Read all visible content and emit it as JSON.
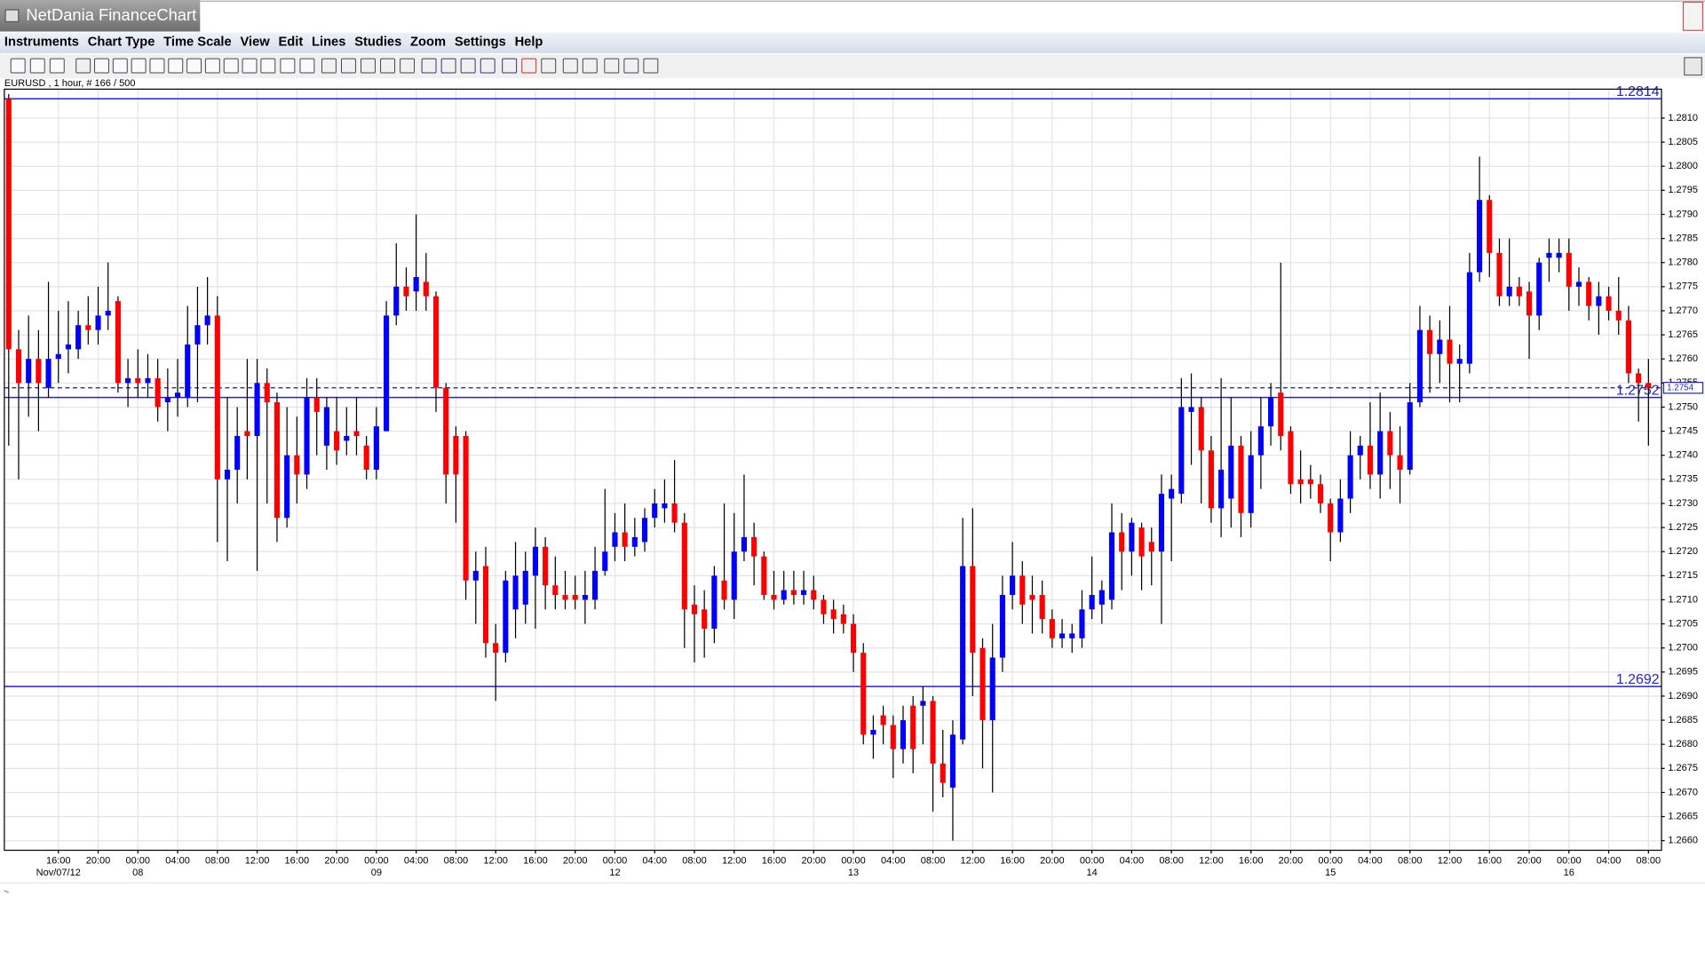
{
  "window_title": "NetDania FinanceChart",
  "menu": [
    "Instruments",
    "Chart Type",
    "Time Scale",
    "View",
    "Edit",
    "Lines",
    "Studies",
    "Zoom",
    "Settings",
    "Help"
  ],
  "chart_data": {
    "type": "candlestick",
    "info": "EURUSD , 1 hour, # 166 / 500",
    "up_color": "#0000ff",
    "down_color": "#ff0000",
    "ylim": [
      1.2658,
      1.2816
    ],
    "yticks": [
      {
        "value": 1.266,
        "label": "1.2660"
      },
      1.2665,
      {
        "value": 1.267,
        "label": "1.2670"
      },
      1.2675,
      {
        "value": 1.268,
        "label": "1.2680"
      },
      1.2685,
      {
        "value": 1.269,
        "label": "1.2690"
      },
      1.2695,
      {
        "value": 1.27,
        "label": "1.2700"
      },
      1.2705,
      {
        "value": 1.271,
        "label": "1.2710"
      },
      1.2715,
      {
        "value": 1.272,
        "label": "1.2720"
      },
      1.2725,
      {
        "value": 1.273,
        "label": "1.2730"
      },
      1.2735,
      {
        "value": 1.274,
        "label": "1.2740"
      },
      1.2745,
      {
        "value": 1.275,
        "label": "1.2750"
      },
      1.2755,
      {
        "value": 1.276,
        "label": "1.2760"
      },
      1.2765,
      {
        "value": 1.277,
        "label": "1.2770"
      },
      1.2775,
      {
        "value": 1.278,
        "label": "1.2780"
      },
      1.2785,
      {
        "value": 1.279,
        "label": "1.2790"
      },
      1.2795,
      {
        "value": 1.28,
        "label": "1.2800"
      },
      1.2805,
      {
        "value": 1.281,
        "label": "1.2810"
      }
    ],
    "grid": true,
    "levels": [
      1.2814,
      1.2752,
      1.2692
    ],
    "level_color": "#2424c8",
    "last": 1.2754,
    "xaxis": [
      {
        "time": "16:00",
        "date": "Nov/07/12"
      },
      {
        "time": "20:00"
      },
      {
        "time": "00:00",
        "date": "08"
      },
      {
        "time": "04:00"
      },
      {
        "time": "08:00"
      },
      {
        "time": "12:00"
      },
      {
        "time": "16:00"
      },
      {
        "time": "20:00"
      },
      {
        "time": "00:00",
        "date": "09"
      },
      {
        "time": "04:00"
      },
      {
        "time": "08:00"
      },
      {
        "time": "12:00"
      },
      {
        "time": "16:00"
      },
      {
        "time": "20:00"
      },
      {
        "time": "00:00",
        "date": "12"
      },
      {
        "time": "04:00"
      },
      {
        "time": "08:00"
      },
      {
        "time": "12:00"
      },
      {
        "time": "16:00"
      },
      {
        "time": "20:00"
      },
      {
        "time": "00:00",
        "date": "13"
      },
      {
        "time": "04:00"
      },
      {
        "time": "08:00"
      },
      {
        "time": "12:00"
      },
      {
        "time": "16:00"
      },
      {
        "time": "20:00"
      },
      {
        "time": "00:00",
        "date": "14"
      },
      {
        "time": "04:00"
      },
      {
        "time": "08:00"
      },
      {
        "time": "12:00"
      },
      {
        "time": "16:00"
      },
      {
        "time": "20:00"
      },
      {
        "time": "00:00",
        "date": "15"
      },
      {
        "time": "04:00"
      },
      {
        "time": "08:00"
      },
      {
        "time": "12:00"
      },
      {
        "time": "16:00"
      },
      {
        "time": "20:00"
      },
      {
        "time": "00:00",
        "date": "16"
      },
      {
        "time": "04:00"
      },
      {
        "time": "08:00"
      }
    ],
    "open": [
      1.2814,
      1.2762,
      1.2755,
      1.276,
      1.2754,
      1.276,
      1.2762,
      1.2762,
      1.2767,
      1.2766,
      1.2769,
      1.2772,
      1.2755,
      1.2756,
      1.2755,
      1.2756,
      1.2751,
      1.2752,
      1.2752,
      1.2763,
      1.2767,
      1.2769,
      1.2735,
      1.2737,
      1.2745,
      1.2744,
      1.2755,
      1.2751,
      1.2727,
      1.274,
      1.2736,
      1.2752,
      1.2742,
      1.2745,
      1.2743,
      1.2745,
      1.2742,
      1.2737,
      1.2745,
      1.2769,
      1.2775,
      1.2774,
      1.2776,
      1.2773,
      1.2754,
      1.2744,
      1.2744,
      1.2714,
      1.2717,
      1.2701,
      1.2699,
      1.2708,
      1.2709,
      1.2715,
      1.2721,
      1.2713,
      1.2711,
      1.2711,
      1.271,
      1.271,
      1.2716,
      1.2721,
      1.2724,
      1.2721,
      1.2722,
      1.2727,
      1.2729,
      1.273,
      1.2726,
      1.2709,
      1.2708,
      1.2704,
      1.2714,
      1.271,
      1.272,
      1.2723,
      1.2719,
      1.2711,
      1.271,
      1.2712,
      1.2711,
      1.2712,
      1.271,
      1.2708,
      1.2707,
      1.2705,
      1.2699,
      1.2682,
      1.2686,
      1.2684,
      1.2679,
      1.2688,
      1.2688,
      1.2689,
      1.2676,
      1.2671,
      1.2681,
      1.2717,
      1.27,
      1.2685,
      1.2698,
      1.2711,
      1.2715,
      1.2711,
      1.2711,
      1.2706,
      1.2702,
      1.2702,
      1.2702,
      1.2708,
      1.2709,
      1.271,
      1.2724,
      1.272,
      1.2725,
      1.2722,
      1.272,
      1.2731,
      1.2732,
      1.2749,
      1.275,
      1.2741,
      1.2729,
      1.2731,
      1.2742,
      1.2728,
      1.274,
      1.2746,
      1.2753,
      1.2745,
      1.2735,
      1.2735,
      1.2734,
      1.273,
      1.2724,
      1.2731,
      1.274,
      1.2742,
      1.2736,
      1.2745,
      1.274,
      1.2737,
      1.2751,
      1.2766,
      1.2761,
      1.2764,
      1.2759,
      1.2759,
      1.2778,
      1.2793,
      1.2782,
      1.2773,
      1.2775,
      1.2774,
      1.2769,
      1.2781,
      1.2781,
      1.2782,
      1.2775,
      1.2776,
      1.2771,
      1.2773,
      1.277,
      1.2768,
      1.2757,
      1.2755
    ],
    "high": [
      1.2815,
      1.2766,
      1.2769,
      1.2766,
      1.2776,
      1.277,
      1.2772,
      1.277,
      1.2773,
      1.2775,
      1.278,
      1.2773,
      1.276,
      1.2762,
      1.2761,
      1.276,
      1.2758,
      1.276,
      1.2771,
      1.2775,
      1.2777,
      1.2773,
      1.2752,
      1.275,
      1.276,
      1.276,
      1.2758,
      1.2753,
      1.275,
      1.2748,
      1.2756,
      1.2756,
      1.2752,
      1.2752,
      1.275,
      1.2752,
      1.2744,
      1.275,
      1.2772,
      1.2784,
      1.2779,
      1.279,
      1.2782,
      1.2774,
      1.2755,
      1.2746,
      1.2745,
      1.272,
      1.2721,
      1.2705,
      1.2716,
      1.2722,
      1.272,
      1.2725,
      1.2723,
      1.2719,
      1.2716,
      1.2715,
      1.2716,
      1.2721,
      1.2733,
      1.2728,
      1.273,
      1.2727,
      1.2729,
      1.2733,
      1.2735,
      1.2739,
      1.2728,
      1.2713,
      1.2712,
      1.2717,
      1.273,
      1.2728,
      1.2736,
      1.2726,
      1.272,
      1.2716,
      1.2716,
      1.2716,
      1.2716,
      1.2715,
      1.2711,
      1.271,
      1.2709,
      1.2707,
      1.2701,
      1.2686,
      1.2688,
      1.2686,
      1.2688,
      1.269,
      1.2692,
      1.269,
      1.2683,
      1.2685,
      1.2727,
      1.2729,
      1.2702,
      1.2705,
      1.2715,
      1.2722,
      1.2718,
      1.2715,
      1.2714,
      1.2708,
      1.2706,
      1.2705,
      1.2712,
      1.2719,
      1.2714,
      1.273,
      1.2728,
      1.2727,
      1.2726,
      1.2725,
      1.2736,
      1.2736,
      1.2756,
      1.2757,
      1.2752,
      1.2744,
      1.2756,
      1.2752,
      1.2744,
      1.2745,
      1.2752,
      1.2755,
      1.278,
      1.2746,
      1.2741,
      1.2738,
      1.2736,
      1.2731,
      1.2735,
      1.2745,
      1.2744,
      1.2751,
      1.2753,
      1.2749,
      1.2746,
      1.2755,
      1.2771,
      1.2769,
      1.2768,
      1.2771,
      1.2763,
      1.2782,
      1.2802,
      1.2794,
      1.2785,
      1.2785,
      1.2777,
      1.2776,
      1.2781,
      1.2785,
      1.2785,
      1.2785,
      1.2779,
      1.2777,
      1.2776,
      1.2775,
      1.2777,
      1.2771,
      1.2758,
      1.276
    ],
    "low": [
      1.2742,
      1.2735,
      1.2748,
      1.2745,
      1.2752,
      1.2755,
      1.2757,
      1.276,
      1.2763,
      1.2763,
      1.2766,
      1.2753,
      1.275,
      1.2752,
      1.2752,
      1.2747,
      1.2745,
      1.2748,
      1.275,
      1.2751,
      1.2763,
      1.2722,
      1.2718,
      1.273,
      1.2735,
      1.2716,
      1.273,
      1.2722,
      1.2725,
      1.273,
      1.2733,
      1.274,
      1.2737,
      1.2738,
      1.274,
      1.274,
      1.2735,
      1.2735,
      1.2745,
      1.2767,
      1.277,
      1.277,
      1.277,
      1.2749,
      1.273,
      1.2726,
      1.271,
      1.2705,
      1.2698,
      1.2689,
      1.2697,
      1.2702,
      1.2705,
      1.2704,
      1.2708,
      1.2708,
      1.2708,
      1.2708,
      1.2705,
      1.2708,
      1.2715,
      1.2718,
      1.2718,
      1.2719,
      1.272,
      1.2725,
      1.2726,
      1.2724,
      1.27,
      1.2697,
      1.2698,
      1.2701,
      1.2708,
      1.2706,
      1.2718,
      1.2713,
      1.271,
      1.2708,
      1.2709,
      1.2709,
      1.2709,
      1.2708,
      1.2705,
      1.2703,
      1.2703,
      1.2695,
      1.268,
      1.2677,
      1.268,
      1.2673,
      1.2676,
      1.2674,
      1.268,
      1.2666,
      1.2669,
      1.266,
      1.268,
      1.269,
      1.2675,
      1.267,
      1.2695,
      1.2708,
      1.2705,
      1.2703,
      1.2703,
      1.27,
      1.27,
      1.2699,
      1.27,
      1.2706,
      1.2705,
      1.2708,
      1.2712,
      1.2715,
      1.2712,
      1.2713,
      1.2705,
      1.2718,
      1.273,
      1.2738,
      1.273,
      1.2726,
      1.2723,
      1.2725,
      1.2723,
      1.2725,
      1.2733,
      1.2742,
      1.2741,
      1.2732,
      1.273,
      1.2731,
      1.2728,
      1.2718,
      1.2722,
      1.2728,
      1.2735,
      1.2733,
      1.2731,
      1.2733,
      1.273,
      1.2736,
      1.275,
      1.2753,
      1.2755,
      1.2751,
      1.2751,
      1.2757,
      1.2776,
      1.2777,
      1.2771,
      1.2771,
      1.2771,
      1.276,
      1.2766,
      1.2776,
      1.2778,
      1.277,
      1.2771,
      1.2768,
      1.2765,
      1.2768,
      1.2765,
      1.2755,
      1.2747,
      1.2742
    ],
    "close": [
      1.2762,
      1.2755,
      1.276,
      1.2755,
      1.276,
      1.2761,
      1.2763,
      1.2767,
      1.2766,
      1.2769,
      1.277,
      1.2755,
      1.2756,
      1.2755,
      1.2756,
      1.275,
      1.2752,
      1.2753,
      1.2763,
      1.2767,
      1.2769,
      1.2735,
      1.2737,
      1.2744,
      1.2744,
      1.2755,
      1.2751,
      1.2727,
      1.274,
      1.2736,
      1.2752,
      1.2749,
      1.275,
      1.2741,
      1.2744,
      1.2744,
      1.2737,
      1.2746,
      1.2769,
      1.2775,
      1.2773,
      1.2777,
      1.2773,
      1.2754,
      1.2736,
      1.2736,
      1.2714,
      1.2716,
      1.2701,
      1.2699,
      1.2714,
      1.2715,
      1.2716,
      1.2721,
      1.2713,
      1.2711,
      1.271,
      1.271,
      1.2711,
      1.2716,
      1.272,
      1.2724,
      1.2721,
      1.2723,
      1.2727,
      1.273,
      1.273,
      1.2726,
      1.2708,
      1.2707,
      1.2704,
      1.2715,
      1.271,
      1.272,
      1.2723,
      1.2719,
      1.2711,
      1.271,
      1.2712,
      1.2711,
      1.2712,
      1.271,
      1.2707,
      1.2706,
      1.2705,
      1.2699,
      1.2682,
      1.2683,
      1.2684,
      1.2679,
      1.2685,
      1.2679,
      1.2689,
      1.2676,
      1.2672,
      1.2682,
      1.2717,
      1.2699,
      1.2685,
      1.2698,
      1.2711,
      1.2715,
      1.2709,
      1.271,
      1.2706,
      1.2702,
      1.2703,
      1.2703,
      1.2708,
      1.2711,
      1.2712,
      1.2724,
      1.272,
      1.2726,
      1.2719,
      1.272,
      1.2732,
      1.2733,
      1.275,
      1.275,
      1.2741,
      1.2729,
      1.2737,
      1.2742,
      1.2728,
      1.274,
      1.2746,
      1.2752,
      1.2744,
      1.2734,
      1.2734,
      1.2734,
      1.273,
      1.2724,
      1.2731,
      1.274,
      1.2742,
      1.2736,
      1.2745,
      1.274,
      1.2737,
      1.2751,
      1.2766,
      1.2761,
      1.2764,
      1.2759,
      1.276,
      1.2778,
      1.2793,
      1.2782,
      1.2773,
      1.2775,
      1.2773,
      1.2769,
      1.278,
      1.2782,
      1.2782,
      1.2775,
      1.2776,
      1.2771,
      1.2773,
      1.277,
      1.2768,
      1.2757,
      1.2755,
      1.2754
    ]
  }
}
